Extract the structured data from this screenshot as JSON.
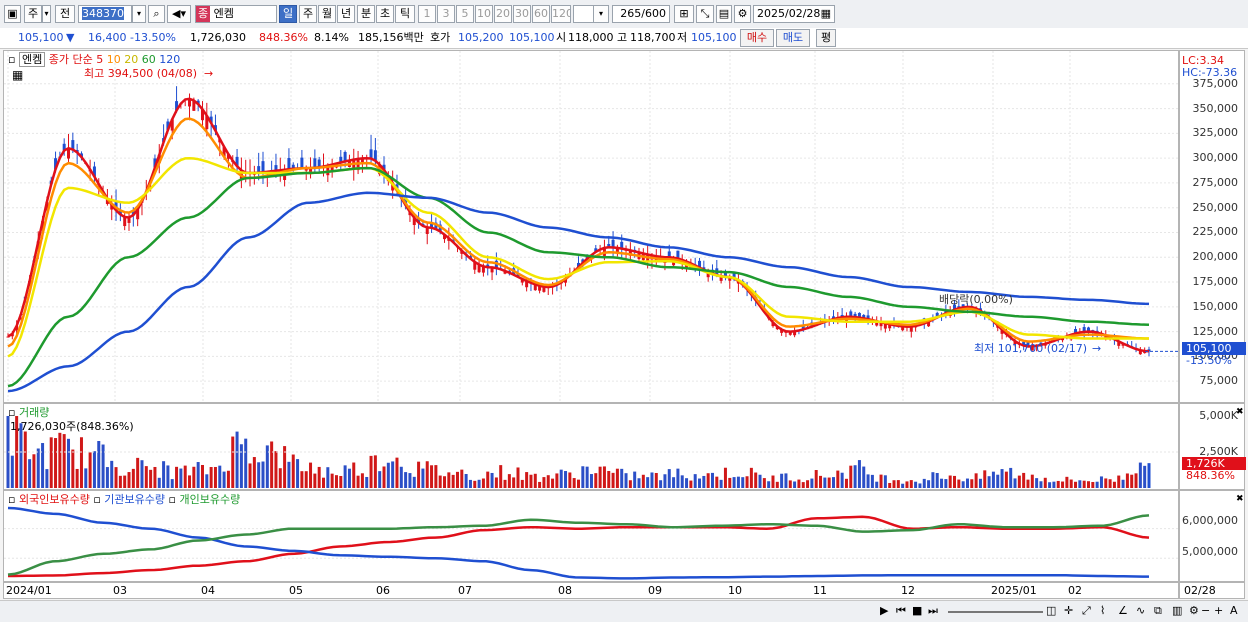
{
  "toolbar": {
    "mode1": "주",
    "mode2": "전",
    "code": "348370",
    "name": "엔켐",
    "name_badge": "종",
    "periods": [
      "일",
      "주",
      "월",
      "년",
      "분",
      "초",
      "틱"
    ],
    "period_selected": "일",
    "intervals": [
      "1",
      "3",
      "5",
      "10",
      "20",
      "30",
      "60",
      "120"
    ],
    "count": "265",
    "count_max": "/600",
    "date": "2025/02/28"
  },
  "quote": {
    "price": "105,100",
    "change_arrow": "▼",
    "change": "16,400",
    "change_pct": "-13.50%",
    "volume": "1,726,030",
    "volume_ratio": "848.36%",
    "turnover": "8.14%",
    "amount": "185,156백만",
    "bid_label": "호가",
    "bid1": "105,200",
    "bid2": "105,100",
    "open_label": "시",
    "open": "118,000",
    "high_label": "고",
    "high": "118,700",
    "low_label": "저",
    "low": "105,100",
    "buy_label": "매수",
    "sell_label": "매도",
    "avg_label": "평"
  },
  "price_pane": {
    "name": "엔켐",
    "legend": {
      "kind": "종가 단순",
      "periods": [
        "5",
        "10",
        "20",
        "60",
        "120"
      ]
    },
    "max_label": "최고 394,500 (04/08)",
    "min_label": "최저 101,700 (02/17)",
    "dividend_label": "배당락(0.00%)",
    "lc": "LC:3.34",
    "hc": "HC:-73.36",
    "current_price": "105,100",
    "current_pct": "-13.50%"
  },
  "volume_pane": {
    "title": "거래량",
    "value": "1,726,030주(848.36%)",
    "axis": [
      "5,000K",
      "2,500K"
    ],
    "current": "1,726K",
    "current_pct": "848.36%"
  },
  "holding_pane": {
    "legend": [
      "외국인보유수량",
      "기관보유수량",
      "개인보유수량"
    ],
    "axis": [
      "6,000,000",
      "5,000,000"
    ]
  },
  "x_labels": [
    "2024/01",
    "03",
    "04",
    "05",
    "06",
    "07",
    "08",
    "09",
    "10",
    "11",
    "12",
    "2025/01",
    "02"
  ],
  "x_end_label": "02/28",
  "chart_data": [
    {
      "type": "candlestick",
      "title": "엔켐",
      "y_ticks": [
        75000,
        100000,
        125000,
        150000,
        175000,
        200000,
        225000,
        250000,
        275000,
        300000,
        325000,
        350000,
        375000
      ],
      "ylim": [
        55000,
        400000
      ],
      "months": [
        "2024/01",
        "03",
        "04",
        "05",
        "06",
        "07",
        "08",
        "09",
        "10",
        "11",
        "12",
        "2025/01",
        "02"
      ],
      "close_by_period": [
        120000,
        310000,
        240000,
        360000,
        285000,
        290000,
        300000,
        230000,
        190000,
        170000,
        210000,
        200000,
        180000,
        125000,
        140000,
        130000,
        150000,
        110000,
        125000,
        105100
      ],
      "ma": [
        {
          "name": "5",
          "color": "#e0101a",
          "values": [
            120000,
            310000,
            240000,
            360000,
            285000,
            290000,
            300000,
            230000,
            190000,
            170000,
            210000,
            200000,
            180000,
            125000,
            140000,
            130000,
            150000,
            110000,
            125000,
            105100
          ]
        },
        {
          "name": "10",
          "color": "#ff8c00",
          "values": [
            110000,
            295000,
            245000,
            340000,
            280000,
            290000,
            295000,
            235000,
            195000,
            172000,
            205000,
            198000,
            180000,
            130000,
            138000,
            132000,
            148000,
            115000,
            122000,
            118000
          ]
        },
        {
          "name": "20",
          "color": "#f2e600",
          "values": [
            100000,
            270000,
            255000,
            300000,
            285000,
            285000,
            290000,
            245000,
            200000,
            178000,
            195000,
            196000,
            180000,
            140000,
            135000,
            135000,
            145000,
            122000,
            118000,
            118000
          ]
        },
        {
          "name": "60",
          "color": "#1e9a2e",
          "values": [
            70000,
            140000,
            200000,
            240000,
            280000,
            285000,
            290000,
            260000,
            225000,
            205000,
            200000,
            190000,
            185000,
            170000,
            160000,
            150000,
            145000,
            140000,
            135000,
            132000
          ]
        },
        {
          "name": "120",
          "color": "#1f4fd1",
          "values": [
            65000,
            90000,
            125000,
            170000,
            220000,
            255000,
            265000,
            260000,
            245000,
            230000,
            220000,
            210000,
            200000,
            190000,
            180000,
            170000,
            165000,
            160000,
            157000,
            153000
          ]
        }
      ],
      "max": 394500,
      "min": 101700,
      "last": 105100
    },
    {
      "type": "bar",
      "title": "거래량",
      "ylim": [
        0,
        5000000
      ],
      "last": 1726030,
      "relative_profile": [
        0.9,
        0.55,
        0.6,
        0.5,
        0.35,
        0.3,
        0.25,
        0.3,
        0.7,
        0.55,
        0.35,
        0.25,
        0.3,
        0.5,
        0.3,
        0.25,
        0.2,
        0.25,
        0.18,
        0.2,
        0.3,
        0.2,
        0.18,
        0.22,
        0.2,
        0.25,
        0.15,
        0.18,
        0.2,
        0.3,
        0.15,
        0.12,
        0.2,
        0.15,
        0.25,
        0.18,
        0.12,
        0.12,
        0.15,
        0.55
      ]
    },
    {
      "type": "line",
      "title": "보유수량",
      "ylim": [
        4300000,
        6800000
      ],
      "series": [
        {
          "name": "외국인보유수량",
          "color": "#e0101a",
          "values": [
            4400000,
            4420000,
            4500000,
            4600000,
            4750000,
            4900000,
            5150000,
            5400000,
            5550000,
            5700000,
            5950000,
            6050000,
            6000000,
            6050000,
            6050000,
            6050000,
            6000000,
            6350000,
            6400000,
            6000000,
            6050000,
            6000000,
            6000000,
            6050000,
            5700000
          ]
        },
        {
          "name": "기관보유수량",
          "color": "#1f4fd1",
          "values": [
            6700000,
            6500000,
            6200000,
            6000000,
            5700000,
            5400000,
            5250000,
            5100000,
            5050000,
            5000000,
            4900000,
            4600000,
            4350000,
            4320000,
            4350000,
            4360000,
            4380000,
            4400000,
            4420000,
            4430000,
            4430000,
            4430000,
            4430000,
            4400000,
            4380000
          ]
        },
        {
          "name": "개인보유수량",
          "color": "#3a8f45",
          "values": [
            4450000,
            4900000,
            5150000,
            5300000,
            5600000,
            5800000,
            6000000,
            6000000,
            6000000,
            6050000,
            6100000,
            6300000,
            6200000,
            6150000,
            6050000,
            6100000,
            6150000,
            6100000,
            5900000,
            5950000,
            6150000,
            6050000,
            6050000,
            6100000,
            6450000
          ]
        }
      ]
    }
  ]
}
